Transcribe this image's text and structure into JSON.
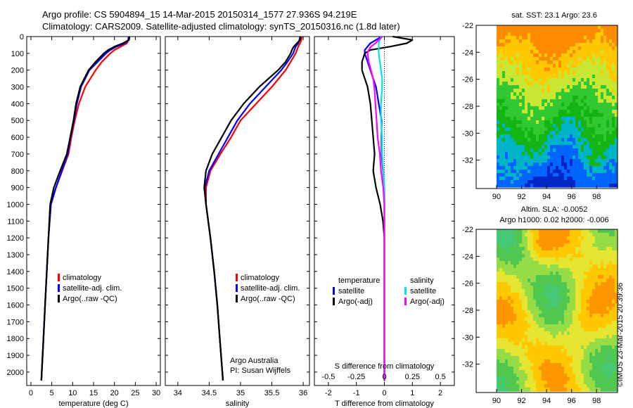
{
  "header": {
    "line1": "Argo profile: CS 5904894_15 14-Mar-2015 20150314_1577 27.936S 94.219E",
    "line2": "Climatology: CARS2009. Satellite-adjusted climatology: synTS_20150316.nc (1.8d later)"
  },
  "watermark": "©IMOS 23-Mar-2015 20:39:36",
  "colors": {
    "climatology": "#ff0000",
    "satellite": "#0000ff",
    "argo": "#000000",
    "sal_satellite": "#00e5ee",
    "sal_argo": "#ff00ff"
  },
  "chart_data": [
    {
      "id": "temperature",
      "type": "line",
      "xlabel": "temperature (deg C)",
      "ylabel": "",
      "xlim": [
        -1,
        31
      ],
      "ylim": [
        2080,
        0
      ],
      "xticks": [
        "0",
        "5",
        "10",
        "15",
        "20",
        "25",
        "30"
      ],
      "yticks": [
        "0",
        "100",
        "200",
        "300",
        "400",
        "500",
        "600",
        "700",
        "800",
        "900",
        "1000",
        "1100",
        "1200",
        "1300",
        "1400",
        "1500",
        "1600",
        "1700",
        "1800",
        "1900",
        "2000"
      ],
      "legend": [
        "climatology",
        "satellite-adj. clim.",
        "Argo(..raw -QC)"
      ],
      "legend_position": "lower-right",
      "depth": [
        0,
        20,
        40,
        60,
        80,
        100,
        150,
        200,
        300,
        400,
        500,
        600,
        700,
        800,
        900,
        1000,
        1200,
        1400,
        1600,
        1800,
        2000,
        2050
      ],
      "series": [
        {
          "name": "climatology",
          "values": [
            23.5,
            23.4,
            23.0,
            21.5,
            20.0,
            19.0,
            17.0,
            15.5,
            13.0,
            11.5,
            10.5,
            9.7,
            9.0,
            7.5,
            6.0,
            4.8,
            4.2,
            3.8,
            3.4,
            3.0,
            2.6,
            2.5
          ]
        },
        {
          "name": "satellite-adj. clim.",
          "values": [
            23.4,
            23.3,
            22.5,
            20.5,
            19.0,
            18.0,
            16.0,
            14.0,
            12.0,
            11.0,
            10.3,
            9.5,
            8.8,
            7.4,
            6.0,
            4.8,
            4.2,
            3.8,
            3.4,
            3.0,
            2.6,
            2.5
          ]
        },
        {
          "name": "Argo(..raw -QC)",
          "values": [
            23.6,
            23.5,
            22.0,
            20.0,
            18.5,
            17.5,
            15.5,
            13.8,
            11.8,
            10.8,
            10.2,
            9.4,
            8.6,
            7.0,
            5.5,
            4.6,
            4.2,
            3.8,
            3.4,
            3.0,
            2.6,
            2.5
          ]
        }
      ]
    },
    {
      "id": "salinity",
      "type": "line",
      "xlabel": "salinity",
      "ylabel": "",
      "xlim": [
        33.8,
        36.1
      ],
      "ylim": [
        2080,
        0
      ],
      "xticks": [
        "34",
        "34.5",
        "35",
        "35.5",
        "36"
      ],
      "legend": [
        "climatology",
        "satellite-adj. clim.",
        "Argo(..raw -QC)"
      ],
      "legend_position": "lower-right",
      "annotations": [
        "Argo Australia",
        "PI: Susan Wijffels"
      ],
      "depth": [
        0,
        20,
        40,
        60,
        80,
        100,
        150,
        200,
        300,
        400,
        500,
        600,
        700,
        800,
        900,
        1000,
        1200,
        1400,
        1600,
        1800,
        2000,
        2050
      ],
      "series": [
        {
          "name": "climatology",
          "values": [
            35.98,
            35.97,
            35.95,
            35.92,
            35.9,
            35.88,
            35.8,
            35.72,
            35.5,
            35.25,
            35.0,
            34.85,
            34.68,
            34.52,
            34.45,
            34.45,
            34.52,
            34.58,
            34.63,
            34.67,
            34.71,
            34.72
          ]
        },
        {
          "name": "satellite-adj. clim.",
          "values": [
            35.95,
            35.94,
            35.92,
            35.88,
            35.86,
            35.84,
            35.75,
            35.65,
            35.4,
            35.15,
            34.95,
            34.8,
            34.65,
            34.5,
            34.43,
            34.45,
            34.52,
            34.58,
            34.63,
            34.67,
            34.71,
            34.72
          ]
        },
        {
          "name": "Argo(..raw -QC)",
          "values": [
            35.96,
            35.95,
            35.9,
            35.85,
            35.82,
            35.8,
            35.72,
            35.6,
            35.3,
            35.05,
            34.85,
            34.7,
            34.55,
            34.45,
            34.42,
            34.45,
            34.52,
            34.58,
            34.63,
            34.67,
            34.71,
            34.72
          ]
        }
      ]
    },
    {
      "id": "difference",
      "type": "line",
      "xlabel": "T difference from climatology",
      "xlabel2": "S difference from climatology",
      "xlim": [
        -2.5,
        2.5
      ],
      "ylim": [
        2080,
        0
      ],
      "xticks": [
        "-2",
        "-1",
        "0",
        "1",
        "2"
      ],
      "xticks2": [
        "-0.5",
        "-0.25",
        "0",
        "0.25",
        "0.5"
      ],
      "legend_groups": [
        {
          "title": "temperature",
          "entries": [
            "satellite",
            "Argo(-adj)"
          ]
        },
        {
          "title": "salinity",
          "entries": [
            "satellite",
            "Argo(-adj)"
          ]
        }
      ],
      "legend_position": "lower-center",
      "depth": [
        0,
        20,
        40,
        60,
        80,
        100,
        150,
        200,
        250,
        300,
        400,
        500,
        600,
        700,
        800,
        900,
        1000,
        1100,
        1200,
        1400,
        1600,
        1800,
        2000,
        2050
      ],
      "series": [
        {
          "name": "T satellite",
          "values": [
            -0.1,
            -0.3,
            -0.5,
            -0.6,
            -0.7,
            -0.7,
            -0.6,
            -0.5,
            -0.4,
            -0.3,
            -0.2,
            -0.1,
            -0.1,
            -0.1,
            -0.05,
            0,
            0,
            0,
            0,
            0,
            0,
            0,
            0,
            0
          ]
        },
        {
          "name": "T Argo(-adj)",
          "values": [
            0.3,
            1.0,
            0.8,
            0.2,
            -0.5,
            -0.7,
            -0.8,
            -0.8,
            -0.7,
            -0.6,
            -0.5,
            -0.45,
            -0.4,
            -0.35,
            -0.4,
            -0.3,
            -0.15,
            -0.05,
            0,
            0,
            0,
            0,
            0,
            0
          ]
        },
        {
          "name": "S satellite",
          "values": [
            -0.03,
            -0.04,
            -0.05,
            -0.05,
            -0.05,
            -0.05,
            -0.04,
            -0.03,
            -0.02,
            -0.02,
            -0.03,
            -0.03,
            -0.02,
            -0.02,
            -0.01,
            0,
            0,
            0,
            0,
            0,
            0,
            0,
            0,
            0
          ]
        },
        {
          "name": "S Argo(-adj)",
          "values": [
            -0.02,
            -0.05,
            -0.08,
            -0.12,
            -0.14,
            -0.15,
            -0.14,
            -0.12,
            -0.1,
            -0.09,
            -0.08,
            -0.07,
            -0.06,
            -0.04,
            -0.03,
            -0.01,
            0,
            0,
            0,
            0,
            0,
            0,
            0,
            0
          ]
        }
      ]
    },
    {
      "id": "sst-map",
      "type": "heatmap",
      "title": "sat. SST: 23.1  Argo: 23.6",
      "xlim": [
        89,
        100
      ],
      "ylim": [
        -33.8,
        -22
      ],
      "xticks": [
        "90",
        "92",
        "94",
        "96",
        "98"
      ],
      "yticks": [
        "-22",
        "-24",
        "-26",
        "-28",
        "-30",
        "-32"
      ],
      "colors": [
        "#ff8c00",
        "#ffc800",
        "#c8e632",
        "#32c832",
        "#14b414",
        "#00b4c8",
        "#0064ff",
        "#0028c8"
      ]
    },
    {
      "id": "sla-map",
      "type": "heatmap",
      "title": "Altim. SLA: -0.0052",
      "subtitle": "Argo h1000: 0.02  h2000: -0.006",
      "xlim": [
        89,
        100
      ],
      "ylim": [
        -33.8,
        -22
      ],
      "xticks": [
        "90",
        "92",
        "94",
        "96",
        "98"
      ],
      "yticks": [
        "-22",
        "-24",
        "-26",
        "-28",
        "-30",
        "-32"
      ],
      "colors": [
        "#ff9600",
        "#ffc800",
        "#e6e632",
        "#96dc46",
        "#50c850",
        "#46c878"
      ]
    }
  ]
}
